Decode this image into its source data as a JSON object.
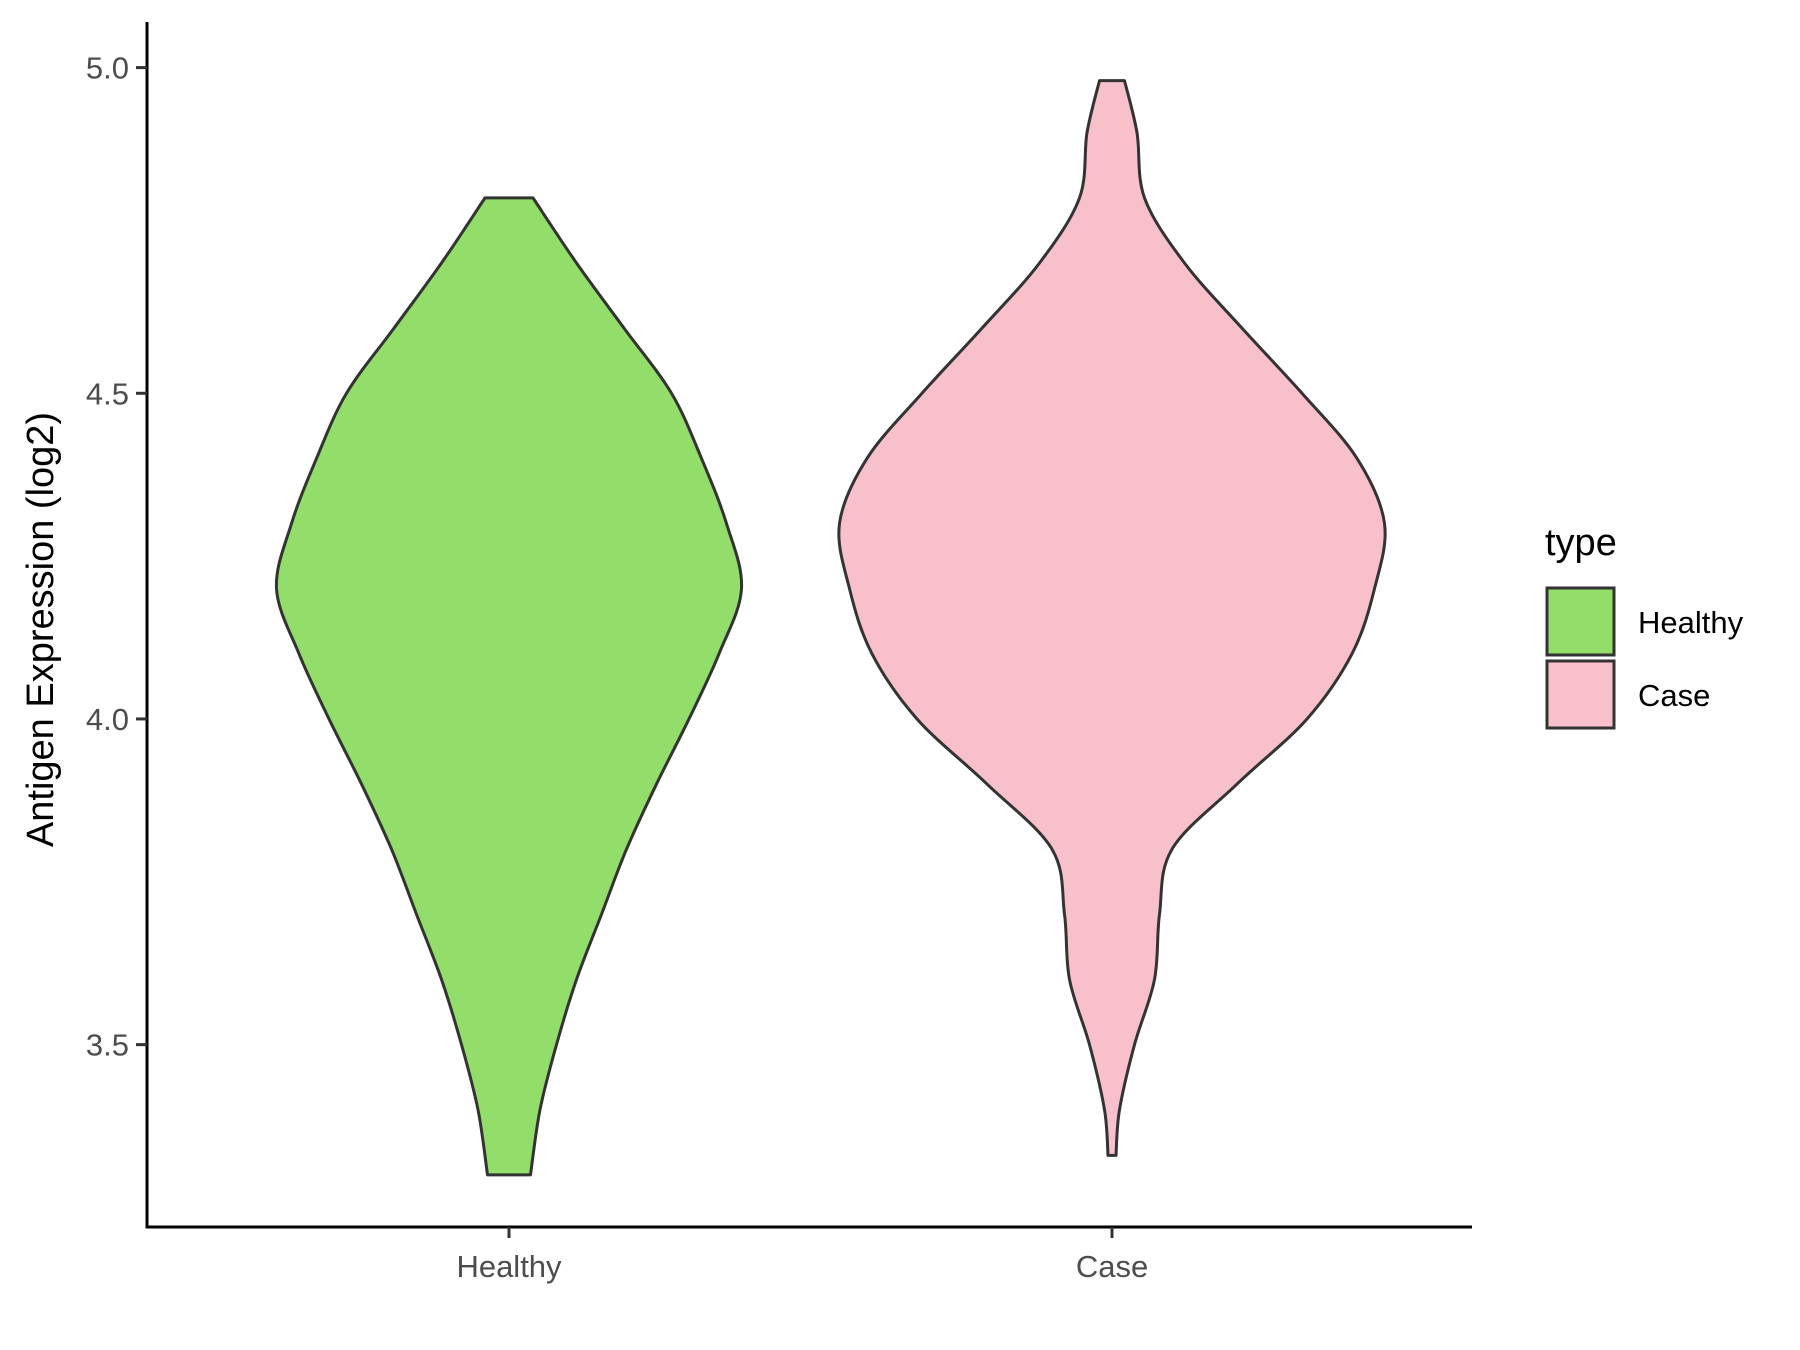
{
  "chart_data": {
    "type": "violin",
    "ylabel": "Antigen Expression (log2)",
    "xlabel": "",
    "ylim": [
      3.22,
      5.07
    ],
    "yticks": [
      3.5,
      4.0,
      4.5,
      5.0
    ],
    "ytick_labels": [
      "3.5",
      "4.0",
      "4.5",
      "5.0"
    ],
    "categories": [
      "Healthy",
      "Case"
    ],
    "grid": false,
    "legend": {
      "title": "type",
      "position": "right",
      "entries": [
        {
          "label": "Healthy",
          "color": "#93DD6A"
        },
        {
          "label": "Case",
          "color": "#F8C0CB"
        }
      ]
    },
    "series": [
      {
        "name": "Healthy",
        "color": "#93DD6A",
        "min": 3.3,
        "max": 4.8,
        "profile": [
          [
            3.3,
            0.043
          ],
          [
            3.4,
            0.062
          ],
          [
            3.5,
            0.095
          ],
          [
            3.6,
            0.135
          ],
          [
            3.7,
            0.185
          ],
          [
            3.8,
            0.235
          ],
          [
            3.9,
            0.295
          ],
          [
            4.0,
            0.36
          ],
          [
            4.1,
            0.42
          ],
          [
            4.2,
            0.465
          ],
          [
            4.3,
            0.435
          ],
          [
            4.4,
            0.385
          ],
          [
            4.5,
            0.325
          ],
          [
            4.6,
            0.23
          ],
          [
            4.7,
            0.135
          ],
          [
            4.8,
            0.048
          ]
        ]
      },
      {
        "name": "Case",
        "color": "#F8C0CB",
        "min": 3.33,
        "max": 4.98,
        "profile": [
          [
            3.33,
            0.008
          ],
          [
            3.4,
            0.015
          ],
          [
            3.5,
            0.045
          ],
          [
            3.6,
            0.085
          ],
          [
            3.7,
            0.095
          ],
          [
            3.8,
            0.12
          ],
          [
            3.9,
            0.25
          ],
          [
            4.0,
            0.39
          ],
          [
            4.1,
            0.48
          ],
          [
            4.2,
            0.525
          ],
          [
            4.3,
            0.545
          ],
          [
            4.4,
            0.49
          ],
          [
            4.5,
            0.38
          ],
          [
            4.6,
            0.26
          ],
          [
            4.7,
            0.145
          ],
          [
            4.8,
            0.065
          ],
          [
            4.9,
            0.05
          ],
          [
            4.98,
            0.025
          ]
        ]
      }
    ]
  }
}
